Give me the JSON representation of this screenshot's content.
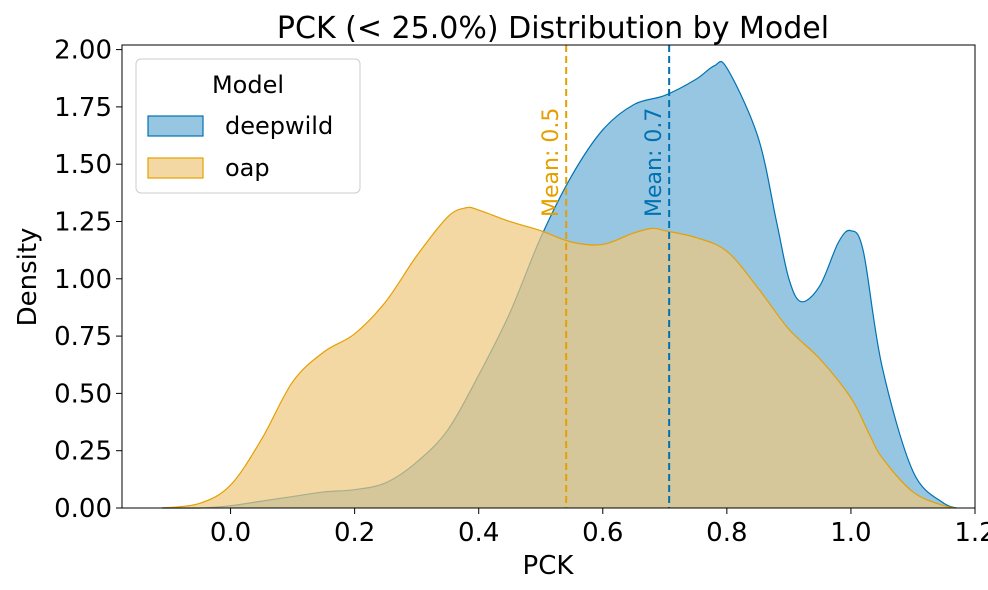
{
  "chart_data": {
    "type": "area",
    "title": "PCK (< 25.0%) Distribution by Model",
    "xlabel": "PCK",
    "ylabel": "Density",
    "xlim": [
      -0.175,
      1.2
    ],
    "ylim": [
      0,
      2.02
    ],
    "xticks": [
      0.0,
      0.2,
      0.4,
      0.6,
      0.8,
      1.0,
      1.2
    ],
    "xtick_labels": [
      "0.0",
      "0.2",
      "0.4",
      "0.6",
      "0.8",
      "1.0",
      "1.2"
    ],
    "yticks": [
      0,
      0.25,
      0.5,
      0.75,
      1.0,
      1.25,
      1.5,
      1.75,
      2.0
    ],
    "ytick_labels": [
      "0.00",
      "0.25",
      "0.50",
      "0.75",
      "1.00",
      "1.25",
      "1.50",
      "1.75",
      "2.00"
    ],
    "grid": false,
    "legend": {
      "title": "Model",
      "position": "top-left"
    },
    "series": [
      {
        "name": "deepwild",
        "color": "#0072B2",
        "fill": "#6baed6",
        "mean": 0.707,
        "mean_label": "Mean: 0.7",
        "x": [
          -0.11,
          -0.05,
          0.0,
          0.05,
          0.1,
          0.15,
          0.2,
          0.25,
          0.3,
          0.35,
          0.4,
          0.45,
          0.5,
          0.55,
          0.6,
          0.65,
          0.7,
          0.75,
          0.78,
          0.8,
          0.85,
          0.88,
          0.9,
          0.92,
          0.95,
          0.98,
          1.0,
          1.02,
          1.05,
          1.1,
          1.15,
          1.17
        ],
        "y": [
          0.0,
          0.0,
          0.01,
          0.03,
          0.05,
          0.07,
          0.08,
          0.11,
          0.2,
          0.34,
          0.58,
          0.85,
          1.18,
          1.45,
          1.65,
          1.76,
          1.8,
          1.87,
          1.93,
          1.92,
          1.62,
          1.25,
          1.0,
          0.9,
          0.97,
          1.16,
          1.21,
          1.12,
          0.62,
          0.16,
          0.02,
          0.0
        ]
      },
      {
        "name": "oap",
        "color": "#E69F00",
        "fill": "#f0c77c",
        "mean": 0.541,
        "mean_label": "Mean: 0.5",
        "x": [
          -0.11,
          -0.05,
          0.0,
          0.05,
          0.1,
          0.15,
          0.2,
          0.25,
          0.3,
          0.35,
          0.38,
          0.4,
          0.45,
          0.5,
          0.55,
          0.6,
          0.65,
          0.68,
          0.7,
          0.75,
          0.8,
          0.85,
          0.9,
          0.95,
          1.0,
          1.03,
          1.05,
          1.1,
          1.15,
          1.17
        ],
        "y": [
          0.0,
          0.02,
          0.1,
          0.3,
          0.55,
          0.68,
          0.76,
          0.9,
          1.1,
          1.27,
          1.31,
          1.3,
          1.25,
          1.21,
          1.16,
          1.15,
          1.2,
          1.22,
          1.21,
          1.18,
          1.12,
          0.96,
          0.78,
          0.65,
          0.48,
          0.32,
          0.22,
          0.07,
          0.01,
          0.0
        ]
      }
    ]
  }
}
